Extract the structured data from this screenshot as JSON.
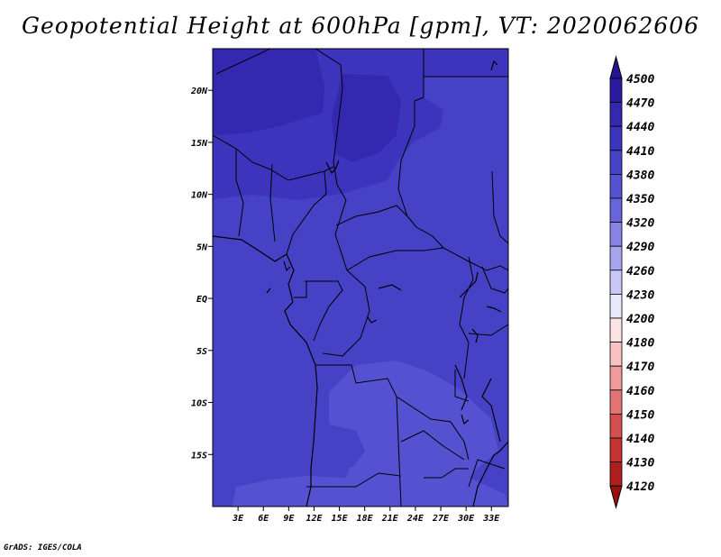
{
  "title": "Geopotential Height at 600hPa [gpm], VT: 2020062606",
  "footer": "GrADS: IGES/COLA",
  "map": {
    "lon_range": [
      0,
      35
    ],
    "lat_range": [
      -20,
      24
    ],
    "lon_ticks": [
      {
        "value": 3,
        "label": "3E"
      },
      {
        "value": 6,
        "label": "6E"
      },
      {
        "value": 9,
        "label": "9E"
      },
      {
        "value": 12,
        "label": "12E"
      },
      {
        "value": 15,
        "label": "15E"
      },
      {
        "value": 18,
        "label": "18E"
      },
      {
        "value": 21,
        "label": "21E"
      },
      {
        "value": 24,
        "label": "24E"
      },
      {
        "value": 27,
        "label": "27E"
      },
      {
        "value": 30,
        "label": "30E"
      },
      {
        "value": 33,
        "label": "33E"
      }
    ],
    "lat_ticks": [
      {
        "value": 20,
        "label": "20N"
      },
      {
        "value": 15,
        "label": "15N"
      },
      {
        "value": 10,
        "label": "10N"
      },
      {
        "value": 5,
        "label": "5N"
      },
      {
        "value": 0,
        "label": "EQ"
      },
      {
        "value": -5,
        "label": "5S"
      },
      {
        "value": -10,
        "label": "10S"
      },
      {
        "value": -15,
        "label": "15S"
      }
    ]
  },
  "colorbar": {
    "labels": [
      "4500",
      "4470",
      "4440",
      "4410",
      "4380",
      "4350",
      "4320",
      "4290",
      "4260",
      "4230",
      "4200",
      "4180",
      "4170",
      "4160",
      "4150",
      "4140",
      "4130",
      "4120"
    ],
    "colors": [
      "#2a1aa0",
      "#3428b0",
      "#3c34bc",
      "#4642c6",
      "#5552d2",
      "#6865dc",
      "#8784e6",
      "#a7a5ef",
      "#c8c7f6",
      "#e8e8fb",
      "#fde4e4",
      "#f8c2c2",
      "#f09a9a",
      "#e37474",
      "#d45050",
      "#c43232",
      "#b01e1e",
      "#a01414"
    ],
    "top_arrow_color": "#241490",
    "bottom_arrow_color": "#9a1010"
  },
  "field_colors": {
    "c4380": "#5552d2",
    "c4410": "#4642c6",
    "c4440": "#3c34bc",
    "c4470": "#3428b0"
  }
}
